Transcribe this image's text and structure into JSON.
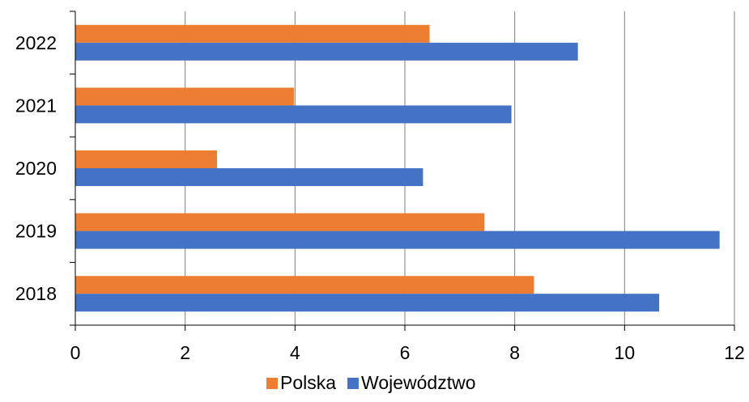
{
  "chart_data": {
    "type": "bar",
    "orientation": "horizontal",
    "categories": [
      "2018",
      "2019",
      "2020",
      "2021",
      "2022"
    ],
    "series": [
      {
        "name": "Polska",
        "color": "#ED7D31",
        "values": [
          8.35,
          7.45,
          2.58,
          3.98,
          6.45
        ]
      },
      {
        "name": "Województwo",
        "color": "#4472C4",
        "values": [
          10.63,
          11.73,
          6.33,
          7.94,
          9.15
        ]
      }
    ],
    "xlim": [
      0,
      12
    ],
    "x_ticks": [
      "0",
      "2",
      "4",
      "6",
      "8",
      "10",
      "12"
    ],
    "grid": true,
    "legend_position": "bottom"
  }
}
